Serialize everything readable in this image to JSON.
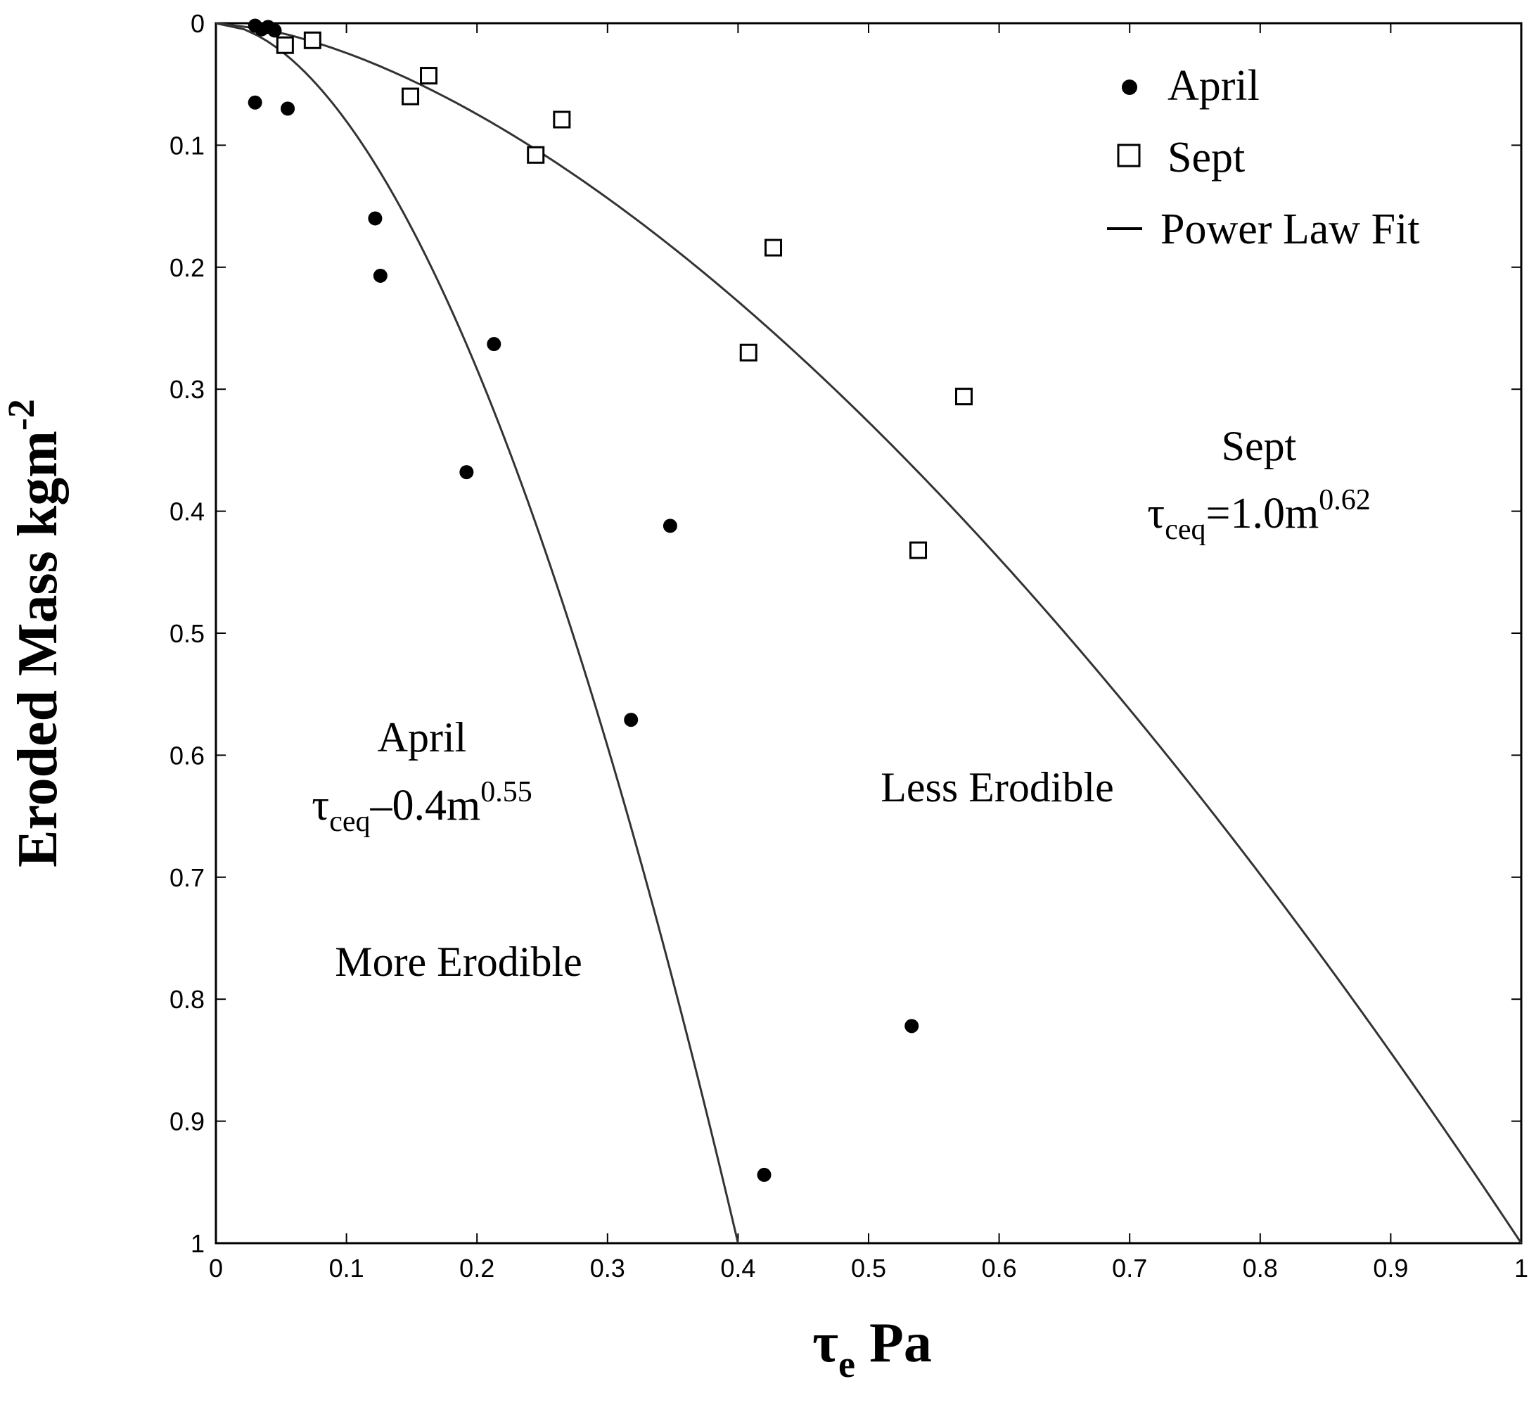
{
  "chart_data": {
    "type": "scatter",
    "xlabel": {
      "main": "τ",
      "sub": "e",
      "rest": " Pa"
    },
    "ylabel": {
      "main": "Eroded Mass kgm",
      "sup": "-2"
    },
    "xlim": [
      0,
      1
    ],
    "ylim": [
      0,
      1
    ],
    "y_inverted": true,
    "grid": false,
    "legend_position": "top-right",
    "x_ticks": [
      "0",
      "0.1",
      "0.2",
      "0.3",
      "0.4",
      "0.5",
      "0.6",
      "0.7",
      "0.8",
      "0.9",
      "1"
    ],
    "y_ticks": [
      "0",
      "0.1",
      "0.2",
      "0.3",
      "0.4",
      "0.5",
      "0.6",
      "0.7",
      "0.8",
      "0.9",
      "1"
    ],
    "legend": [
      {
        "label": "April",
        "marker": "filled-circle"
      },
      {
        "label": "Sept",
        "marker": "open-square"
      },
      {
        "label": "Power Law Fit",
        "marker": "line"
      }
    ],
    "series": [
      {
        "name": "April",
        "marker": "filled-circle",
        "color": "#000000",
        "points": [
          {
            "x": 0.03,
            "y": 0.002
          },
          {
            "x": 0.035,
            "y": 0.005
          },
          {
            "x": 0.04,
            "y": 0.003
          },
          {
            "x": 0.045,
            "y": 0.006
          },
          {
            "x": 0.03,
            "y": 0.065
          },
          {
            "x": 0.055,
            "y": 0.07
          },
          {
            "x": 0.122,
            "y": 0.16
          },
          {
            "x": 0.126,
            "y": 0.207
          },
          {
            "x": 0.213,
            "y": 0.263
          },
          {
            "x": 0.192,
            "y": 0.368
          },
          {
            "x": 0.348,
            "y": 0.412
          },
          {
            "x": 0.318,
            "y": 0.571
          },
          {
            "x": 0.533,
            "y": 0.822
          },
          {
            "x": 0.42,
            "y": 0.944
          }
        ]
      },
      {
        "name": "Sept",
        "marker": "open-square",
        "color": "#000000",
        "points": [
          {
            "x": 0.053,
            "y": 0.018
          },
          {
            "x": 0.074,
            "y": 0.014
          },
          {
            "x": 0.163,
            "y": 0.043
          },
          {
            "x": 0.149,
            "y": 0.06
          },
          {
            "x": 0.265,
            "y": 0.079
          },
          {
            "x": 0.245,
            "y": 0.108
          },
          {
            "x": 0.427,
            "y": 0.184
          },
          {
            "x": 0.408,
            "y": 0.27
          },
          {
            "x": 0.573,
            "y": 0.306
          },
          {
            "x": 0.538,
            "y": 0.432
          }
        ]
      }
    ],
    "fits": [
      {
        "series": "April",
        "coefficient": 0.4,
        "exponent": 0.55,
        "y_max": 1.0
      },
      {
        "series": "Sept",
        "coefficient": 1.0,
        "exponent": 0.62,
        "y_max": 1.0
      }
    ],
    "annotations": {
      "sept_name": "Sept",
      "sept_eq": {
        "base": "τ",
        "sub": "ceq",
        "body": "=1.0m",
        "sup": "0.62"
      },
      "april_name": "April",
      "april_eq": {
        "base": "τ",
        "sub": "ceq",
        "body": "–0.4m",
        "sup": "0.55"
      },
      "less": "Less Erodible",
      "more": "More Erodible"
    }
  }
}
